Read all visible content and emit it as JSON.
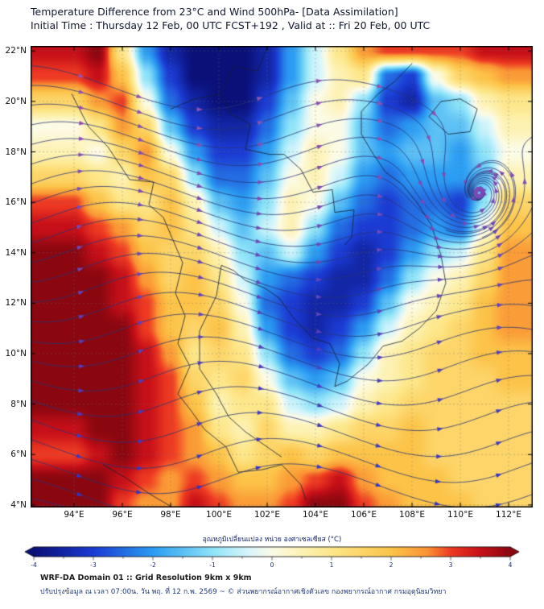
{
  "header": {
    "title_line1": "Temperature Difference from 23°C and Wind 500hPa- [Data Assimilation]",
    "title_line2": "Initial Time : Thursday 12 Feb, 00 UTC FCST+192 , Valid at ::  Fri 20 Feb, 00 UTC"
  },
  "footer": {
    "line1": "WRF-DA Domain 01 :: Grid Resolution 9km x 9km",
    "line2": "ปรับปรุงข้อมูล ณ เวลา 07:00น. วัน พฤ. ที่ 12 ก.พ. 2569 ~ © ส่วนพยากรณ์อากาศเชิงตัวเลข กองพยากรณ์อากาศ กรมอุตุนิยมวิทยา"
  },
  "colorbar": {
    "label": "อุณหภูมิเปลี่ยนแปลง หน่วย องศาเซลเซียส (°C)",
    "min": -4,
    "max": 4,
    "tick_values": [
      -4,
      -3,
      -2,
      -1,
      0,
      1,
      2,
      3,
      4
    ],
    "tick_labels": [
      "-4",
      "-3",
      "-2",
      "-1",
      "0",
      "1",
      "2",
      "3",
      "4"
    ]
  },
  "chart_data": {
    "type": "heatmap",
    "title": "Temperature Difference from 23°C and Wind 500hPa- [Data Assimilation]",
    "subtitle": "Initial Time : Thursday 12 Feb, 00 UTC FCST+192 , Valid at :: Fri 20 Feb, 00 UTC",
    "units": "°C",
    "lon_range": [
      92.2,
      113.0
    ],
    "lat_range": [
      3.9,
      22.2
    ],
    "x_tick_values": [
      94,
      96,
      98,
      100,
      102,
      104,
      106,
      108,
      110,
      112
    ],
    "x_tick_labels": [
      "94°E",
      "96°E",
      "98°E",
      "100°E",
      "102°E",
      "104°E",
      "106°E",
      "108°E",
      "110°E",
      "112°E"
    ],
    "y_tick_values": [
      4,
      6,
      8,
      10,
      12,
      14,
      16,
      18,
      20,
      22
    ],
    "y_tick_labels": [
      "4°N",
      "6°N",
      "8°N",
      "10°N",
      "12°N",
      "14°N",
      "16°N",
      "18°N",
      "20°N",
      "22°N"
    ],
    "grid_lons_start": 94,
    "grid_lon_step": 1,
    "grid_lats_start": 22,
    "grid_lat_step": -1,
    "temperature_anomaly_c": [
      [
        3.5,
        4,
        1,
        -2,
        -3.5,
        -4,
        -4,
        -4,
        -3.5,
        -2,
        -0.5,
        1,
        2.5,
        3,
        3,
        3,
        3,
        3.5,
        3.5
      ],
      [
        3,
        3.5,
        2,
        -1,
        -3,
        -4,
        -4,
        -4,
        -3.5,
        -2,
        -0.5,
        0.5,
        1,
        -2.5,
        -3,
        0,
        1.5,
        2,
        2.5
      ],
      [
        1.5,
        2.5,
        3,
        0,
        -2.5,
        -3.5,
        -4,
        -4,
        -3,
        -1.5,
        0,
        0.5,
        -1,
        -3,
        -3.5,
        -1.5,
        -1,
        0.5,
        1
      ],
      [
        0,
        1,
        2.5,
        1.5,
        -1.5,
        -3,
        -3.5,
        -3.5,
        -2.5,
        -1,
        0,
        0,
        -1.5,
        -2.5,
        -2,
        -1.5,
        -1.5,
        -0.5,
        0.5
      ],
      [
        0.5,
        0,
        1.5,
        2.5,
        0,
        -2,
        -3,
        -3,
        -2,
        -0.5,
        0.5,
        0,
        -1.5,
        -2,
        -1.5,
        -1.5,
        -2,
        -1,
        0
      ],
      [
        1.5,
        1,
        0.5,
        2,
        1.5,
        -1,
        -2.5,
        -2.5,
        -1.5,
        0,
        0.5,
        -0.5,
        -2,
        -2.5,
        -2,
        -2,
        -2,
        -1.5,
        0.5
      ],
      [
        3,
        2,
        1,
        1,
        2,
        0.5,
        -1.5,
        -2,
        -1,
        0.5,
        0,
        -1.5,
        -2.5,
        -3,
        -2.5,
        -2.5,
        -3,
        -1,
        1.5
      ],
      [
        3.5,
        3,
        2.5,
        1.5,
        2,
        1,
        -0.5,
        -1.5,
        -0.5,
        0.5,
        -1,
        -2.5,
        -3,
        -3,
        -2.5,
        -2,
        -2.5,
        0,
        2
      ],
      [
        4,
        3.5,
        3,
        2,
        1.5,
        1.5,
        0.5,
        -1,
        -1.5,
        -0.5,
        -2,
        -3,
        -3.5,
        -3,
        -2,
        -1,
        -0.5,
        1,
        2.5
      ],
      [
        4,
        4,
        3.5,
        2.5,
        1.5,
        2,
        1,
        -0.5,
        -2,
        -2.5,
        -3,
        -3.5,
        -3.5,
        -2.5,
        -1,
        0,
        0.5,
        1.5,
        2.5
      ],
      [
        4,
        4,
        3.5,
        3,
        2,
        2,
        1.5,
        0,
        -2.5,
        -3,
        -3.5,
        -3.5,
        -3,
        -1.5,
        0,
        0.5,
        1,
        2,
        2.5
      ],
      [
        4,
        4,
        4,
        3,
        2,
        1.5,
        2,
        0.5,
        -2,
        -3,
        -3.5,
        -3,
        -2,
        -0.5,
        0.5,
        1,
        1.5,
        2,
        2.5
      ],
      [
        4,
        4,
        4,
        3.5,
        2.5,
        1,
        1.5,
        1,
        -1,
        -2.5,
        -3,
        -2.5,
        -1,
        0.5,
        1,
        1.5,
        1.5,
        2,
        2
      ],
      [
        4,
        4,
        4,
        3.5,
        3,
        1.5,
        1,
        1.5,
        0,
        -1.5,
        -2,
        -1.5,
        0,
        0.5,
        1,
        1.5,
        1.5,
        1.5,
        2
      ],
      [
        4,
        4,
        4,
        3.5,
        3,
        2,
        0.5,
        1,
        1,
        -0.5,
        -1,
        -0.5,
        0.5,
        1,
        1.5,
        1.5,
        1.5,
        1.5,
        1.5
      ],
      [
        3.5,
        4,
        4,
        3.5,
        3,
        2.5,
        1,
        0.5,
        1.5,
        0.5,
        0.5,
        1,
        1.5,
        1.5,
        2,
        1.5,
        1.5,
        1.5,
        1.5
      ],
      [
        3,
        3.5,
        4,
        3.5,
        3,
        2.5,
        2,
        1,
        1.5,
        2,
        1.5,
        2,
        2,
        2,
        2,
        1.5,
        1.5,
        1.5,
        1.5
      ],
      [
        4,
        4,
        3.5,
        3,
        2.5,
        3,
        2.5,
        2,
        2,
        2.5,
        3,
        3.5,
        2.5,
        2,
        2,
        2,
        1.5,
        1.5,
        1.5
      ],
      [
        4,
        4,
        3,
        2.5,
        2.5,
        3.5,
        3,
        2.5,
        2.5,
        3,
        4,
        4,
        3,
        2.5,
        2,
        2,
        2,
        1.5,
        1.5
      ]
    ],
    "colormap": [
      [
        -4,
        "#0a1078"
      ],
      [
        -3,
        "#1b3bd3"
      ],
      [
        -2,
        "#2b9df2"
      ],
      [
        -1,
        "#8fe4f8"
      ],
      [
        -0.4,
        "#d8f6fb"
      ],
      [
        0,
        "#fcfbe6"
      ],
      [
        0.5,
        "#fdf2b4"
      ],
      [
        1,
        "#fde78a"
      ],
      [
        2,
        "#fcc348"
      ],
      [
        2.6,
        "#fa9434"
      ],
      [
        3,
        "#ee3a22"
      ],
      [
        3.5,
        "#c60f18"
      ],
      [
        4,
        "#8a0710"
      ]
    ],
    "wind": {
      "pattern": "westerly streamflow with synoptic waves",
      "vortex_lonlat": [
        110.4,
        15.9
      ],
      "line_color": "rgba(40,52,120,0.9)",
      "arrow_color_south": "#2d35c8",
      "arrow_color_north": "#a055b0",
      "seed_spacing_deg": 0.78,
      "extra_seeds": [
        [
          111.6,
          16.9
        ],
        [
          109.4,
          14.9
        ],
        [
          110.9,
          14.6
        ]
      ]
    },
    "grid_on": true,
    "coastlines": [
      [
        [
          93.9,
          20.3
        ],
        [
          94.6,
          19.0
        ],
        [
          95.4,
          18.2
        ],
        [
          96.3,
          16.9
        ],
        [
          97.3,
          16.8
        ],
        [
          97.1,
          15.9
        ],
        [
          97.7,
          15.4
        ],
        [
          98.5,
          13.6
        ],
        [
          98.2,
          12.4
        ],
        [
          98.6,
          11.5
        ],
        [
          98.3,
          10.4
        ],
        [
          98.8,
          9.5
        ],
        [
          98.3,
          8.4
        ],
        [
          98.8,
          7.8
        ],
        [
          99.4,
          7.0
        ],
        [
          100.3,
          6.3
        ],
        [
          100.8,
          5.3
        ],
        [
          101.8,
          5.4
        ],
        [
          102.6,
          5.6
        ],
        [
          103.4,
          4.8
        ],
        [
          103.6,
          4.2
        ]
      ],
      [
        [
          100.1,
          13.5
        ],
        [
          99.9,
          12.3
        ],
        [
          99.2,
          10.9
        ],
        [
          99.2,
          9.4
        ],
        [
          99.9,
          8.4
        ],
        [
          100.4,
          7.5
        ],
        [
          101.1,
          6.9
        ],
        [
          102.0,
          6.3
        ],
        [
          102.6,
          5.9
        ]
      ],
      [
        [
          100.1,
          13.5
        ],
        [
          100.6,
          13.3
        ],
        [
          101.1,
          12.9
        ],
        [
          101.9,
          12.6
        ],
        [
          102.5,
          12.2
        ],
        [
          103.1,
          11.4
        ],
        [
          103.9,
          10.6
        ],
        [
          104.6,
          10.4
        ],
        [
          105.0,
          9.6
        ],
        [
          104.8,
          8.7
        ],
        [
          105.3,
          8.9
        ],
        [
          106.2,
          9.6
        ],
        [
          106.8,
          10.3
        ],
        [
          107.6,
          10.5
        ],
        [
          108.3,
          11.0
        ],
        [
          109.0,
          11.7
        ],
        [
          109.4,
          12.8
        ],
        [
          109.2,
          13.9
        ],
        [
          108.8,
          15.1
        ],
        [
          108.2,
          16.0
        ],
        [
          107.6,
          16.7
        ],
        [
          106.9,
          17.2
        ],
        [
          106.4,
          17.9
        ],
        [
          105.9,
          18.7
        ],
        [
          105.9,
          19.6
        ],
        [
          106.6,
          20.3
        ],
        [
          107.3,
          20.8
        ],
        [
          108.0,
          21.5
        ]
      ],
      [
        [
          108.7,
          19.4
        ],
        [
          109.2,
          20.0
        ],
        [
          110.0,
          20.1
        ],
        [
          110.7,
          19.7
        ],
        [
          110.4,
          18.8
        ],
        [
          109.5,
          18.7
        ],
        [
          108.7,
          19.4
        ]
      ],
      [
        [
          95.2,
          5.6
        ],
        [
          96.1,
          5.1
        ],
        [
          97.2,
          4.4
        ],
        [
          98.0,
          3.95
        ]
      ],
      [
        [
          100.1,
          20.3
        ],
        [
          100.5,
          19.5
        ],
        [
          101.3,
          19.1
        ],
        [
          101.1,
          18.1
        ],
        [
          102.1,
          17.9
        ],
        [
          102.7,
          17.9
        ],
        [
          103.4,
          17.3
        ],
        [
          103.9,
          16.4
        ],
        [
          104.7,
          16.5
        ],
        [
          104.8,
          15.6
        ],
        [
          105.6,
          15.7
        ],
        [
          105.5,
          14.6
        ],
        [
          105.2,
          14.3
        ]
      ],
      [
        [
          98.0,
          19.7
        ],
        [
          99.0,
          20.1
        ],
        [
          100.1,
          20.3
        ],
        [
          100.6,
          21.4
        ],
        [
          101.6,
          21.2
        ],
        [
          102.1,
          22.4
        ]
      ]
    ]
  }
}
